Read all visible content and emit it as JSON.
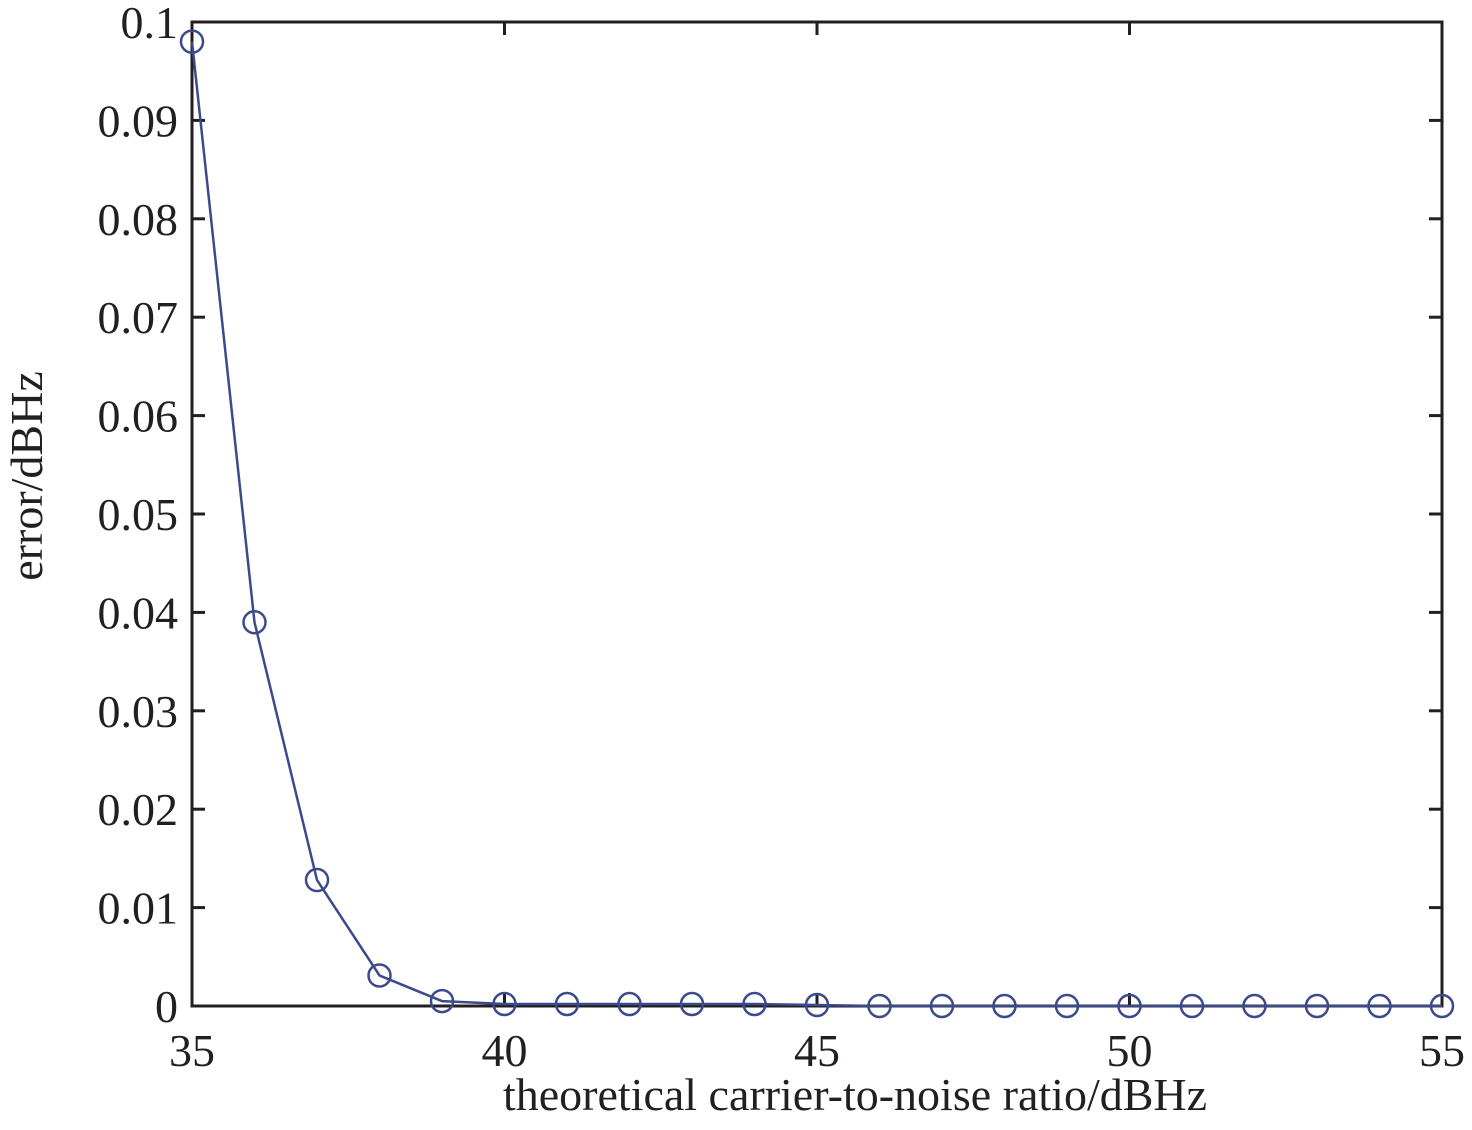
{
  "chart_data": {
    "type": "line",
    "xlabel": "theoretical carrier-to-noise ratio/dBHz",
    "ylabel": "error/dBHz",
    "x": [
      35,
      36,
      37,
      38,
      39,
      40,
      41,
      42,
      43,
      44,
      45,
      46,
      47,
      48,
      49,
      50,
      51,
      52,
      53,
      54,
      55
    ],
    "series": [
      {
        "color": "#3b4a8c",
        "marker": "circle",
        "values": [
          0.098,
          0.039,
          0.0128,
          0.0031,
          0.0005,
          0.0002,
          0.0002,
          0.0002,
          0.0002,
          0.0002,
          0.0001,
          0,
          0,
          0,
          0,
          0,
          0,
          0,
          0,
          0,
          0
        ]
      }
    ],
    "xlim": [
      35,
      55
    ],
    "xticks": [
      35,
      40,
      45,
      50,
      55
    ],
    "ylim": [
      0,
      0.1
    ],
    "yticks": [
      0,
      0.01,
      0.02,
      0.03,
      0.04,
      0.05,
      0.06,
      0.07,
      0.08,
      0.09,
      0.1
    ],
    "grid": false
  }
}
